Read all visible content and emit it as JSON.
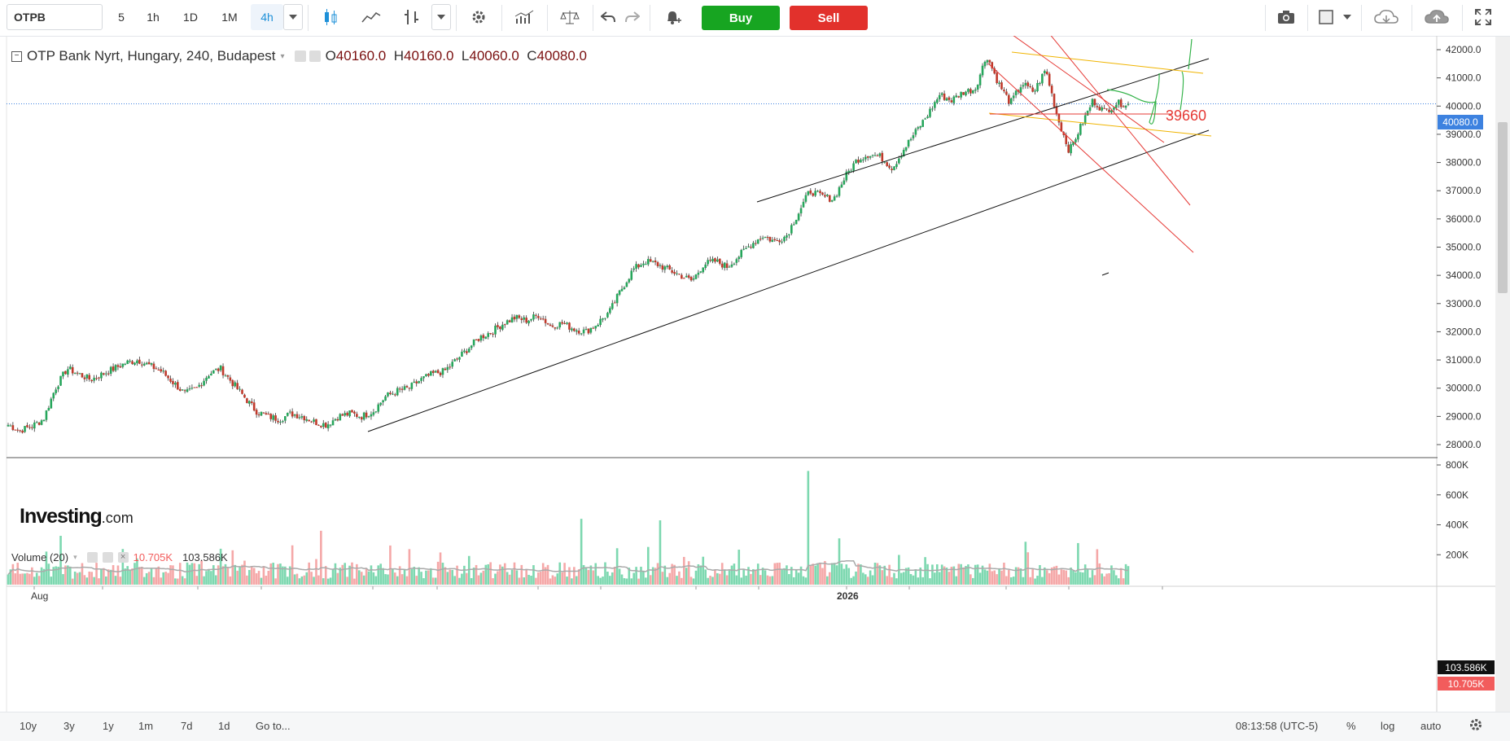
{
  "toolbar": {
    "symbol": "OTPB",
    "intervals": [
      "5",
      "1h",
      "1D",
      "1M",
      "4h"
    ],
    "active_interval": "4h",
    "buy_label": "Buy",
    "sell_label": "Sell"
  },
  "legend": {
    "title": "OTP Bank Nyrt, Hungary, 240, Budapest",
    "o_label": "O",
    "o_value": "40160.0",
    "h_label": "H",
    "h_value": "40160.0",
    "l_label": "L",
    "l_value": "40060.0",
    "c_label": "C",
    "c_value": "40080.0"
  },
  "volume_legend": {
    "title": "Volume (20)",
    "value1": "10.705K",
    "value2": "103.586K"
  },
  "price_axis": {
    "labels": [
      "42000.0",
      "41000.0",
      "40000.0",
      "39000.0",
      "38000.0",
      "37000.0",
      "36000.0",
      "35000.0",
      "34000.0",
      "33000.0",
      "32000.0",
      "31000.0",
      "30000.0",
      "29000.0",
      "28000.0"
    ],
    "current_price": "40080.0",
    "annotation": "39660"
  },
  "volume_axis": {
    "labels": [
      "800K",
      "600K",
      "400K",
      "200K"
    ],
    "tag_avg": "103.586K",
    "tag_last": "10.705K"
  },
  "time_axis": {
    "labels": [
      "Aug",
      "2026"
    ]
  },
  "bottom_bar": {
    "ranges": [
      "10y",
      "3y",
      "1y",
      "1m",
      "7d",
      "1d"
    ],
    "goto": "Go to...",
    "time": "08:13:58 (UTC-5)",
    "percent": "%",
    "log": "log",
    "auto": "auto"
  },
  "logo": {
    "brand": "Investing",
    "suffix": ".com"
  },
  "colors": {
    "up": "#26a65b",
    "down": "#c0392b",
    "volume_up": "#7dd8b0",
    "volume_down": "#f5a8a8",
    "price_line": "#3d82e0",
    "buy": "#17a521",
    "sell": "#e2312c"
  },
  "chart_data": {
    "type": "candlestick",
    "price_range": [
      27600,
      42500
    ],
    "volume_range": [
      0,
      800000
    ],
    "price_path": [
      28700,
      28500,
      28650,
      28900,
      30000,
      30700,
      30500,
      30300,
      30500,
      30700,
      30900,
      31000,
      30800,
      30600,
      30200,
      29800,
      30000,
      30500,
      30700,
      30200,
      29700,
      29200,
      29000,
      28900,
      29100,
      29000,
      28800,
      28700,
      29000,
      29100,
      29000,
      29200,
      29700,
      29900,
      30000,
      30300,
      30500,
      30600,
      31000,
      31400,
      31800,
      32000,
      32300,
      32500,
      32400,
      32600,
      32200,
      32300,
      32100,
      32000,
      32300,
      32700,
      33500,
      34200,
      34500,
      34400,
      34200,
      34000,
      33800,
      34400,
      34500,
      34300,
      34700,
      35100,
      35400,
      35200,
      35400,
      36200,
      37000,
      36800,
      36700,
      37500,
      38100,
      38300,
      38200,
      37800,
      38500,
      39100,
      39700,
      40400,
      40200,
      40500,
      40600,
      41800,
      40800,
      40100,
      40800,
      40500,
      41300,
      39600,
      38400,
      39300,
      40200,
      39800,
      40100,
      40080
    ]
  }
}
